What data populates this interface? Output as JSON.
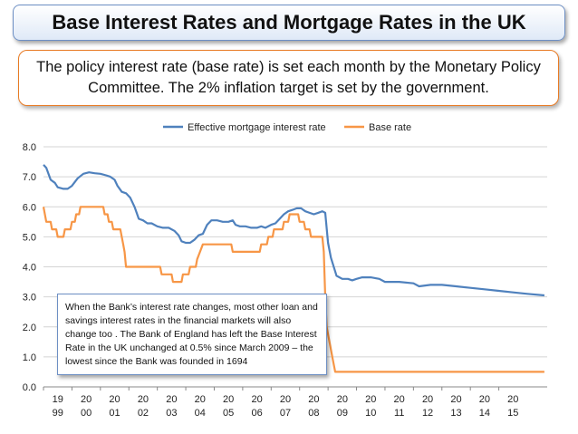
{
  "title": "Base Interest Rates and Mortgage Rates in the UK",
  "subtitle": "The policy interest rate (base rate) is set each month by the Monetary Policy Committee. The 2% inflation target is set by the government.",
  "note": "When the Bank’s interest rate changes, most other loan and savings interest rates in the financial markets will also change too . The Bank of England has left the Base Interest Rate in the UK unchanged at 0.5% since March 2009 – the lowest since the Bank was founded in 1694",
  "chart_data": {
    "type": "line",
    "title": "",
    "xlabel": "",
    "ylabel": "",
    "ylim": [
      0,
      8
    ],
    "yticks": [
      "0.0",
      "1.0",
      "2.0",
      "3.0",
      "4.0",
      "5.0",
      "6.0",
      "7.0",
      "8.0"
    ],
    "xlim": [
      1999,
      2016.7
    ],
    "x_tick_labels": [
      [
        "19",
        "99"
      ],
      [
        "20",
        "00"
      ],
      [
        "20",
        "01"
      ],
      [
        "20",
        "02"
      ],
      [
        "20",
        "03"
      ],
      [
        "20",
        "04"
      ],
      [
        "20",
        "05"
      ],
      [
        "20",
        "06"
      ],
      [
        "20",
        "07"
      ],
      [
        "20",
        "08"
      ],
      [
        "20",
        "09"
      ],
      [
        "20",
        "10"
      ],
      [
        "20",
        "11"
      ],
      [
        "20",
        "12"
      ],
      [
        "20",
        "13"
      ],
      [
        "20",
        "14"
      ],
      [
        "20",
        "15"
      ]
    ],
    "grid": true,
    "legend_position": "top",
    "series": [
      {
        "name": "Effective mortgage interest rate",
        "color": "#4f81bd",
        "points": [
          [
            1999.0,
            7.4
          ],
          [
            1999.1,
            7.3
          ],
          [
            1999.25,
            6.9
          ],
          [
            1999.4,
            6.8
          ],
          [
            1999.5,
            6.65
          ],
          [
            1999.7,
            6.6
          ],
          [
            1999.85,
            6.6
          ],
          [
            2000.0,
            6.7
          ],
          [
            2000.2,
            6.95
          ],
          [
            2000.4,
            7.1
          ],
          [
            2000.6,
            7.15
          ],
          [
            2000.8,
            7.12
          ],
          [
            2001.0,
            7.1
          ],
          [
            2001.2,
            7.05
          ],
          [
            2001.35,
            7.0
          ],
          [
            2001.5,
            6.9
          ],
          [
            2001.6,
            6.7
          ],
          [
            2001.75,
            6.5
          ],
          [
            2001.9,
            6.45
          ],
          [
            2002.05,
            6.3
          ],
          [
            2002.2,
            6.0
          ],
          [
            2002.35,
            5.6
          ],
          [
            2002.5,
            5.55
          ],
          [
            2002.65,
            5.45
          ],
          [
            2002.8,
            5.45
          ],
          [
            2003.0,
            5.35
          ],
          [
            2003.2,
            5.3
          ],
          [
            2003.4,
            5.3
          ],
          [
            2003.6,
            5.2
          ],
          [
            2003.75,
            5.05
          ],
          [
            2003.85,
            4.85
          ],
          [
            2004.0,
            4.8
          ],
          [
            2004.15,
            4.8
          ],
          [
            2004.3,
            4.9
          ],
          [
            2004.45,
            5.05
          ],
          [
            2004.6,
            5.1
          ],
          [
            2004.75,
            5.4
          ],
          [
            2004.9,
            5.55
          ],
          [
            2005.1,
            5.55
          ],
          [
            2005.3,
            5.5
          ],
          [
            2005.5,
            5.5
          ],
          [
            2005.65,
            5.55
          ],
          [
            2005.75,
            5.4
          ],
          [
            2005.9,
            5.35
          ],
          [
            2006.1,
            5.35
          ],
          [
            2006.3,
            5.3
          ],
          [
            2006.5,
            5.3
          ],
          [
            2006.65,
            5.35
          ],
          [
            2006.8,
            5.3
          ],
          [
            2007.0,
            5.4
          ],
          [
            2007.15,
            5.45
          ],
          [
            2007.3,
            5.6
          ],
          [
            2007.45,
            5.75
          ],
          [
            2007.6,
            5.85
          ],
          [
            2007.75,
            5.9
          ],
          [
            2007.9,
            5.95
          ],
          [
            2008.05,
            5.95
          ],
          [
            2008.2,
            5.85
          ],
          [
            2008.35,
            5.8
          ],
          [
            2008.5,
            5.75
          ],
          [
            2008.65,
            5.8
          ],
          [
            2008.8,
            5.85
          ],
          [
            2008.9,
            5.8
          ],
          [
            2009.0,
            4.8
          ],
          [
            2009.1,
            4.3
          ],
          [
            2009.3,
            3.7
          ],
          [
            2009.5,
            3.6
          ],
          [
            2009.7,
            3.6
          ],
          [
            2009.85,
            3.55
          ],
          [
            2010.0,
            3.6
          ],
          [
            2010.2,
            3.65
          ],
          [
            2010.5,
            3.65
          ],
          [
            2010.8,
            3.6
          ],
          [
            2011.0,
            3.5
          ],
          [
            2011.5,
            3.5
          ],
          [
            2012.0,
            3.45
          ],
          [
            2012.2,
            3.35
          ],
          [
            2012.6,
            3.4
          ],
          [
            2013.0,
            3.4
          ],
          [
            2013.5,
            3.35
          ],
          [
            2014.0,
            3.3
          ],
          [
            2014.5,
            3.25
          ],
          [
            2015.0,
            3.2
          ],
          [
            2015.5,
            3.15
          ],
          [
            2016.0,
            3.1
          ],
          [
            2016.6,
            3.05
          ]
        ]
      },
      {
        "name": "Base rate",
        "color": "#f79646",
        "points": [
          [
            1999.0,
            6.0
          ],
          [
            1999.1,
            5.5
          ],
          [
            1999.25,
            5.5
          ],
          [
            1999.3,
            5.25
          ],
          [
            1999.45,
            5.25
          ],
          [
            1999.5,
            5.0
          ],
          [
            1999.7,
            5.0
          ],
          [
            1999.75,
            5.25
          ],
          [
            1999.95,
            5.25
          ],
          [
            2000.0,
            5.5
          ],
          [
            2000.1,
            5.5
          ],
          [
            2000.15,
            5.75
          ],
          [
            2000.25,
            5.75
          ],
          [
            2000.3,
            6.0
          ],
          [
            2001.1,
            6.0
          ],
          [
            2001.15,
            5.75
          ],
          [
            2001.25,
            5.75
          ],
          [
            2001.3,
            5.5
          ],
          [
            2001.4,
            5.5
          ],
          [
            2001.45,
            5.25
          ],
          [
            2001.7,
            5.25
          ],
          [
            2001.75,
            5.0
          ],
          [
            2001.8,
            4.75
          ],
          [
            2001.85,
            4.5
          ],
          [
            2001.9,
            4.0
          ],
          [
            2003.1,
            4.0
          ],
          [
            2003.15,
            3.75
          ],
          [
            2003.5,
            3.75
          ],
          [
            2003.55,
            3.5
          ],
          [
            2003.85,
            3.5
          ],
          [
            2003.9,
            3.75
          ],
          [
            2004.1,
            3.75
          ],
          [
            2004.15,
            4.0
          ],
          [
            2004.35,
            4.0
          ],
          [
            2004.4,
            4.25
          ],
          [
            2004.5,
            4.5
          ],
          [
            2004.6,
            4.75
          ],
          [
            2005.6,
            4.75
          ],
          [
            2005.65,
            4.5
          ],
          [
            2006.6,
            4.5
          ],
          [
            2006.65,
            4.75
          ],
          [
            2006.85,
            4.75
          ],
          [
            2006.9,
            5.0
          ],
          [
            2007.05,
            5.0
          ],
          [
            2007.1,
            5.25
          ],
          [
            2007.4,
            5.25
          ],
          [
            2007.45,
            5.5
          ],
          [
            2007.6,
            5.5
          ],
          [
            2007.65,
            5.75
          ],
          [
            2007.95,
            5.75
          ],
          [
            2008.0,
            5.5
          ],
          [
            2008.15,
            5.5
          ],
          [
            2008.2,
            5.25
          ],
          [
            2008.35,
            5.25
          ],
          [
            2008.4,
            5.0
          ],
          [
            2008.8,
            5.0
          ],
          [
            2008.85,
            4.5
          ],
          [
            2008.9,
            3.0
          ],
          [
            2008.95,
            2.0
          ],
          [
            2009.05,
            1.5
          ],
          [
            2009.15,
            1.0
          ],
          [
            2009.25,
            0.5
          ],
          [
            2016.6,
            0.5
          ]
        ]
      }
    ]
  }
}
